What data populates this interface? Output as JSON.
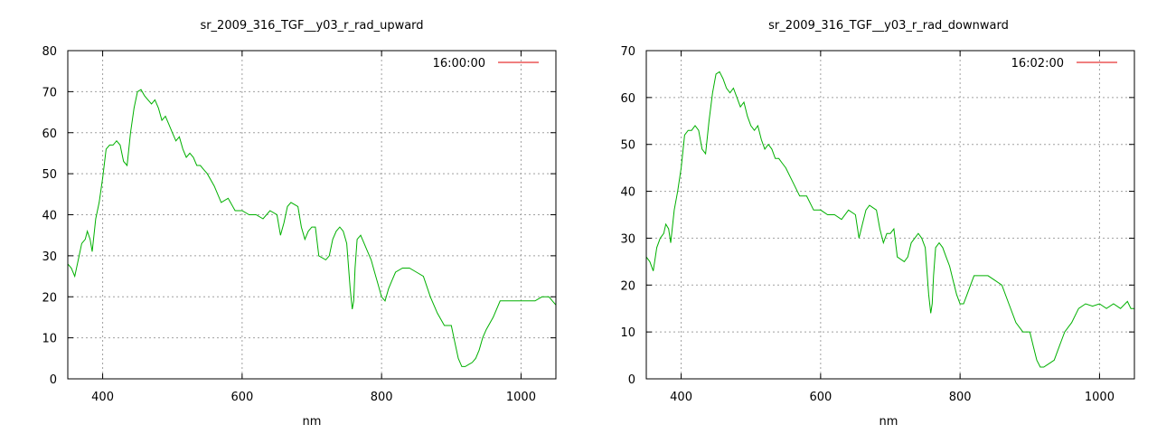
{
  "chart_data": [
    {
      "type": "line",
      "title": "sr_2009_316_TGF__y03_r_rad_upward",
      "xlabel": "nm",
      "ylabel": "",
      "xlim": [
        350,
        1050
      ],
      "ylim": [
        0,
        80
      ],
      "xticks": [
        400,
        600,
        800,
        1000
      ],
      "yticks": [
        0,
        10,
        20,
        30,
        40,
        50,
        60,
        70,
        80
      ],
      "grid": true,
      "legend_position": "top-right",
      "series": [
        {
          "name": "16:00:00",
          "color": "#00b000",
          "legend_color": "#e00000",
          "x": [
            350,
            355,
            360,
            365,
            370,
            375,
            378,
            382,
            385,
            390,
            395,
            400,
            405,
            410,
            415,
            420,
            425,
            430,
            435,
            440,
            445,
            450,
            455,
            460,
            465,
            470,
            475,
            480,
            485,
            490,
            495,
            500,
            505,
            510,
            515,
            520,
            525,
            530,
            535,
            540,
            545,
            550,
            560,
            570,
            580,
            590,
            600,
            610,
            620,
            630,
            640,
            650,
            655,
            660,
            665,
            670,
            680,
            685,
            690,
            695,
            700,
            705,
            710,
            720,
            725,
            730,
            735,
            740,
            745,
            750,
            755,
            758,
            760,
            762,
            765,
            770,
            775,
            780,
            785,
            790,
            795,
            800,
            805,
            810,
            815,
            820,
            830,
            840,
            850,
            860,
            870,
            880,
            890,
            900,
            905,
            910,
            915,
            920,
            925,
            930,
            935,
            940,
            945,
            950,
            960,
            970,
            980,
            990,
            1000,
            1010,
            1020,
            1030,
            1040,
            1045,
            1050
          ],
          "y": [
            28,
            27,
            25,
            29,
            33,
            34,
            36,
            34,
            31,
            39,
            43,
            49,
            56,
            57,
            57,
            58,
            57,
            53,
            52,
            60,
            66,
            70,
            70.5,
            69,
            68,
            67,
            68,
            66,
            63,
            64,
            62,
            60,
            58,
            59,
            56,
            54,
            55,
            54,
            52,
            52,
            51,
            50,
            47,
            43,
            44,
            41,
            41,
            40,
            40,
            39,
            41,
            40,
            35,
            38,
            42,
            43,
            42,
            37,
            34,
            36,
            37,
            37,
            30,
            29,
            30,
            34,
            36,
            37,
            36,
            33,
            22,
            17,
            19,
            27,
            34,
            35,
            33,
            31,
            29,
            26,
            23,
            20,
            19,
            22,
            24,
            26,
            27,
            27,
            26,
            25,
            20,
            16,
            13,
            13,
            9,
            5,
            3,
            3,
            3.5,
            4,
            5,
            7,
            10,
            12,
            15,
            19,
            19,
            19,
            19,
            19,
            19,
            20,
            20,
            19,
            18
          ]
        }
      ]
    },
    {
      "type": "line",
      "title": "sr_2009_316_TGF__y03_r_rad_downward",
      "xlabel": "nm",
      "ylabel": "",
      "xlim": [
        350,
        1050
      ],
      "ylim": [
        0,
        70
      ],
      "xticks": [
        400,
        600,
        800,
        1000
      ],
      "yticks": [
        0,
        10,
        20,
        30,
        40,
        50,
        60,
        70
      ],
      "grid": true,
      "legend_position": "top-right",
      "series": [
        {
          "name": "16:02:00",
          "color": "#00b000",
          "legend_color": "#e00000",
          "x": [
            350,
            355,
            360,
            365,
            370,
            375,
            378,
            382,
            385,
            390,
            395,
            400,
            405,
            410,
            415,
            420,
            425,
            430,
            435,
            440,
            445,
            450,
            455,
            460,
            465,
            470,
            475,
            480,
            485,
            490,
            495,
            500,
            505,
            510,
            515,
            520,
            525,
            530,
            535,
            540,
            545,
            550,
            560,
            570,
            580,
            590,
            600,
            610,
            620,
            630,
            640,
            650,
            655,
            660,
            665,
            670,
            680,
            685,
            690,
            695,
            700,
            705,
            710,
            720,
            725,
            730,
            735,
            740,
            745,
            750,
            755,
            758,
            760,
            762,
            765,
            770,
            775,
            780,
            785,
            790,
            795,
            800,
            805,
            810,
            815,
            820,
            830,
            840,
            850,
            860,
            870,
            880,
            890,
            900,
            905,
            910,
            915,
            920,
            925,
            930,
            935,
            940,
            945,
            950,
            960,
            970,
            980,
            990,
            1000,
            1010,
            1020,
            1030,
            1040,
            1045,
            1050
          ],
          "y": [
            26,
            25,
            23,
            28,
            30,
            31,
            33,
            32,
            29,
            36,
            40,
            45,
            52,
            53,
            53,
            54,
            53,
            49,
            48,
            55,
            61,
            65,
            65.5,
            64,
            62,
            61,
            62,
            60,
            58,
            59,
            56,
            54,
            53,
            54,
            51,
            49,
            50,
            49,
            47,
            47,
            46,
            45,
            42,
            39,
            39,
            36,
            36,
            35,
            35,
            34,
            36,
            35,
            30,
            33,
            36,
            37,
            36,
            32,
            29,
            31,
            31,
            32,
            26,
            25,
            26,
            29,
            30,
            31,
            30,
            28,
            18,
            14,
            16,
            22,
            28,
            29,
            28,
            26,
            24,
            21,
            18,
            16,
            16,
            18,
            20,
            22,
            22,
            22,
            21,
            20,
            16,
            12,
            10,
            10,
            7,
            4,
            2.5,
            2.5,
            3,
            3.5,
            4,
            6,
            8,
            10,
            12,
            15,
            16,
            15.5,
            16,
            15,
            16,
            15,
            16.5,
            15,
            15
          ]
        }
      ]
    }
  ]
}
